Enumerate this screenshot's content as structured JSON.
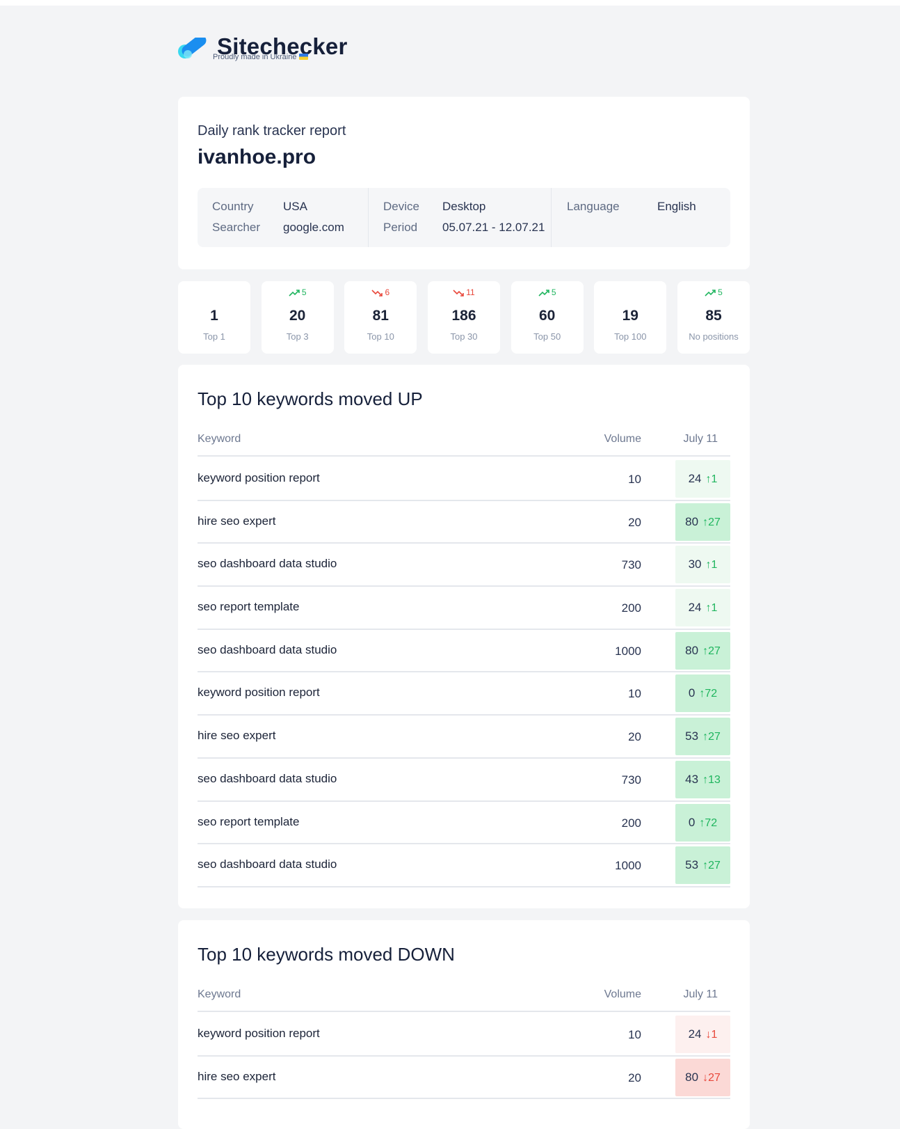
{
  "brand": {
    "name": "Sitechecker",
    "tagline": "Proudly made in Ukraine"
  },
  "report": {
    "subtitle": "Daily rank tracker report",
    "site": "ivanhoe.pro",
    "info": {
      "country_label": "Country",
      "country_value": "USA",
      "searcher_label": "Searcher",
      "searcher_value": "google.com",
      "device_label": "Device",
      "device_value": "Desktop",
      "period_label": "Period",
      "period_value": "05.07.21 - 12.07.21",
      "language_label": "Language",
      "language_value": "English"
    }
  },
  "stats": [
    {
      "value": "1",
      "label": "Top 1",
      "delta": "",
      "trend": "none"
    },
    {
      "value": "20",
      "label": "Top 3",
      "delta": "5",
      "trend": "up"
    },
    {
      "value": "81",
      "label": "Top 10",
      "delta": "6",
      "trend": "down"
    },
    {
      "value": "186",
      "label": "Top 30",
      "delta": "11",
      "trend": "down"
    },
    {
      "value": "60",
      "label": "Top 50",
      "delta": "5",
      "trend": "up"
    },
    {
      "value": "19",
      "label": "Top 100",
      "delta": "",
      "trend": "none"
    },
    {
      "value": "85",
      "label": "No positions",
      "delta": "5",
      "trend": "up"
    }
  ],
  "up_table": {
    "title": "Top 10 keywords moved UP",
    "headers": {
      "keyword": "Keyword",
      "volume": "Volume",
      "date": "July 11"
    },
    "rows": [
      {
        "keyword": "keyword position report",
        "volume": "10",
        "position": "24",
        "change": "1",
        "shade": "up1"
      },
      {
        "keyword": "hire seo expert",
        "volume": "20",
        "position": "80",
        "change": "27",
        "shade": "up2"
      },
      {
        "keyword": "seo dashboard data studio",
        "volume": "730",
        "position": "30",
        "change": "1",
        "shade": "up1"
      },
      {
        "keyword": "seo report template",
        "volume": "200",
        "position": "24",
        "change": "1",
        "shade": "up1"
      },
      {
        "keyword": "seo dashboard data studio",
        "volume": "1000",
        "position": "80",
        "change": "27",
        "shade": "up2"
      },
      {
        "keyword": "keyword position report",
        "volume": "10",
        "position": "0",
        "change": "72",
        "shade": "up2"
      },
      {
        "keyword": "hire seo expert",
        "volume": "20",
        "position": "53",
        "change": "27",
        "shade": "up2"
      },
      {
        "keyword": "seo dashboard data studio",
        "volume": "730",
        "position": "43",
        "change": "13",
        "shade": "up2"
      },
      {
        "keyword": "seo report template",
        "volume": "200",
        "position": "0",
        "change": "72",
        "shade": "up2"
      },
      {
        "keyword": "seo dashboard data studio",
        "volume": "1000",
        "position": "53",
        "change": "27",
        "shade": "up2"
      }
    ]
  },
  "down_table": {
    "title": "Top 10 keywords moved DOWN",
    "headers": {
      "keyword": "Keyword",
      "volume": "Volume",
      "date": "July 11"
    },
    "rows": [
      {
        "keyword": "keyword position report",
        "volume": "10",
        "position": "24",
        "change": "1",
        "shade": "down1"
      },
      {
        "keyword": "hire seo expert",
        "volume": "20",
        "position": "80",
        "change": "27",
        "shade": "down2"
      }
    ]
  },
  "colors": {
    "up": "#1fb55e",
    "down": "#e8473a",
    "brand_dark": "#16203a",
    "logo_primary": "#1a8ef0",
    "logo_secondary": "#39d9f0"
  }
}
